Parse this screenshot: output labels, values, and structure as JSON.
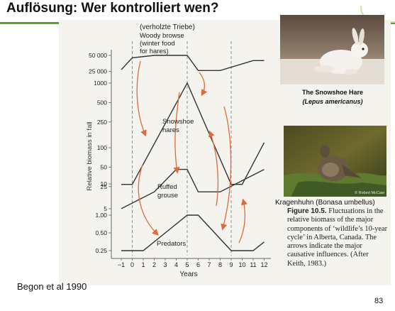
{
  "slide": {
    "title": "Auflösung:  Wer kontrolliert wen?",
    "citation": "Begon et al 1990",
    "page_number": "83",
    "accent_color": "#5aa02c"
  },
  "figure": {
    "subtitle": "(verholzte Triebe)",
    "y_axis_label": "Relative biomass in fall",
    "x_axis_label": "Years",
    "series_labels": {
      "woody_browse": [
        "Woody browse",
        "(winter food",
        "for hares)"
      ],
      "hares": [
        "Snowshoe",
        "hares"
      ],
      "grouse": [
        "Ruffed",
        "grouse"
      ],
      "predators": "Predators"
    },
    "caption_number": "Figure 10.5.",
    "caption_text": "Fluctuations in the relative biomass of the major components of ‘wildlife’s 10-year cycle’ in Alberta, Canada. The arrows indicate the major causative influences. (After Keith, 1983.)"
  },
  "photos": {
    "hare_caption_line1": "The Snowshoe Hare",
    "hare_caption_line2": "(Lepus americanus)",
    "grouse_caption": "Kragenhuhn (Bonasa umbellus)",
    "photo_credit": "© Robert McCaw"
  },
  "chart_data": {
    "type": "line",
    "x": [
      -1,
      0,
      1,
      2,
      3,
      4,
      5,
      6,
      7,
      8,
      9,
      10,
      11,
      12
    ],
    "x_tick_labels": [
      "−1",
      "0",
      "1",
      "2",
      "3",
      "4",
      "5",
      "6",
      "7",
      "8",
      "9",
      "10",
      "11",
      "12"
    ],
    "xlim": [
      -1,
      12
    ],
    "dashed_gridlines_x": [
      0,
      5,
      9
    ],
    "xlabel": "Years",
    "ylabel": "Relative biomass in fall",
    "scale": "log",
    "series": [
      {
        "name": "Woody browse",
        "points": [
          [
            -1,
            27000
          ],
          [
            0,
            45000
          ],
          [
            2,
            50000
          ],
          [
            5,
            50000
          ],
          [
            6,
            26000
          ],
          [
            8,
            26000
          ],
          [
            11,
            40000
          ],
          [
            12,
            40000
          ]
        ],
        "tick_labels": [
          "50 000",
          "25 000"
        ]
      },
      {
        "name": "Snowshoe hares",
        "points": [
          [
            -1,
            27
          ],
          [
            0,
            27
          ],
          [
            5,
            1000
          ],
          [
            9,
            27
          ],
          [
            10,
            27
          ],
          [
            12,
            120
          ]
        ],
        "tick_labels": [
          "1000",
          "500",
          "250",
          "100",
          "50",
          "25"
        ]
      },
      {
        "name": "Ruffed grouse",
        "points": [
          [
            -1,
            5
          ],
          [
            2,
            8
          ],
          [
            4,
            15
          ],
          [
            5,
            15
          ],
          [
            6,
            8
          ],
          [
            8,
            8
          ],
          [
            12,
            15
          ]
        ],
        "tick_labels": [
          "10",
          "5"
        ]
      },
      {
        "name": "Predators",
        "points": [
          [
            -1,
            0.25
          ],
          [
            1,
            0.25
          ],
          [
            5,
            1.0
          ],
          [
            6,
            1.0
          ],
          [
            9,
            0.25
          ],
          [
            11,
            0.25
          ],
          [
            12,
            0.35
          ]
        ],
        "tick_labels": [
          "1.00",
          "0.50",
          "0.25"
        ]
      }
    ],
    "arrows": [
      {
        "from": "Woody browse",
        "to": "Snowshoe hares"
      },
      {
        "from": "Snowshoe hares",
        "to": "Woody browse"
      },
      {
        "from": "Woody browse",
        "to": "Predators"
      },
      {
        "from": "Snowshoe hares",
        "to": "Ruffed grouse"
      },
      {
        "from": "Predators",
        "to": "Snowshoe hares"
      },
      {
        "from": "Snowshoe hares",
        "to": "Predators"
      },
      {
        "from": "Predators",
        "to": "Ruffed grouse"
      }
    ],
    "line_color": "#333333",
    "arrow_color": "#e06a3a"
  }
}
